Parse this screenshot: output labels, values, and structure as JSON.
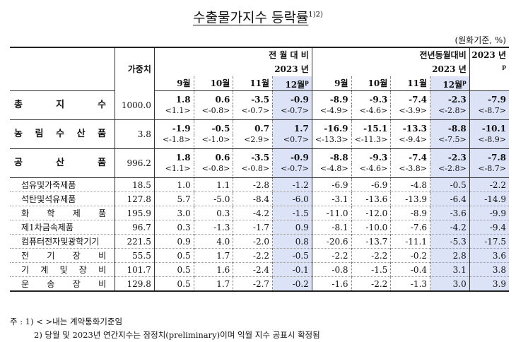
{
  "title": "수출물가지수 등락률",
  "title_sup": "1)2)",
  "unit": "(원화기준, %)",
  "header": {
    "weight": "가중치",
    "mom_group": "전 월 대 비",
    "mom_year": "2023 년",
    "yoy_group": "전년동월대비",
    "yoy_year": "2023 년",
    "annual": "2023 년",
    "annual_sup": "p",
    "months": [
      "9월",
      "10월",
      "11월",
      "12월"
    ],
    "month_p_sup": "p"
  },
  "rows": [
    {
      "label": "총 지 수",
      "weight": "1000.0",
      "mom": [
        "1.8",
        "0.6",
        "-3.5",
        "-0.9"
      ],
      "mom_krw": [
        "<1.1>",
        "<-0.8>",
        "<-0.7>",
        "<-0.7>"
      ],
      "yoy": [
        "-8.9",
        "-9.3",
        "-7.4",
        "-2.3"
      ],
      "yoy_krw": [
        "<-4.9>",
        "<-4.6>",
        "<-3.9>",
        "<-2.8>"
      ],
      "annual": "-7.9",
      "annual_krw": "<-8.7>"
    },
    {
      "label": "농 림 수 산 품",
      "weight": "3.8",
      "mom": [
        "-1.9",
        "-0.5",
        "0.7",
        "1.7"
      ],
      "mom_krw": [
        "<-1.8>",
        "<-1.0>",
        "<2.9>",
        "<0.7>"
      ],
      "yoy": [
        "-16.9",
        "-15.1",
        "-13.3",
        "-8.8"
      ],
      "yoy_krw": [
        "<-13.3>",
        "<-11.3>",
        "<-9.4>",
        "<-7.5>"
      ],
      "annual": "-10.1",
      "annual_krw": "<-8.9>"
    },
    {
      "label": "공 산 품",
      "weight": "996.2",
      "mom": [
        "1.8",
        "0.6",
        "-3.5",
        "-0.9"
      ],
      "mom_krw": [
        "<1.1>",
        "<-0.8>",
        "<-0.8>",
        "<-0.7>"
      ],
      "yoy": [
        "-8.8",
        "-9.3",
        "-7.4",
        "-2.3"
      ],
      "yoy_krw": [
        "<-4.8>",
        "<-4.6>",
        "<-3.8>",
        "<-2.8>"
      ],
      "annual": "-7.8",
      "annual_krw": "<-8.7>"
    }
  ],
  "subrows": [
    {
      "label": "섬유및가죽제품",
      "weight": "18.5",
      "mom": [
        "1.0",
        "1.1",
        "-2.8",
        "-1.2"
      ],
      "yoy": [
        "-6.9",
        "-6.9",
        "-4.8",
        "-0.5"
      ],
      "annual": "-2.2"
    },
    {
      "label": "석탄및석유제품",
      "weight": "127.8",
      "mom": [
        "5.7",
        "-5.0",
        "-8.4",
        "-6.0"
      ],
      "yoy": [
        "-3.1",
        "-13.6",
        "-13.9",
        "-6.4"
      ],
      "annual": "-14.9"
    },
    {
      "label": "화 학 제 품",
      "weight": "195.9",
      "mom": [
        "3.0",
        "0.3",
        "-4.2",
        "-1.5"
      ],
      "yoy": [
        "-11.0",
        "-12.0",
        "-8.9",
        "-3.6"
      ],
      "annual": "-9.9"
    },
    {
      "label": "제1차금속제품",
      "weight": "96.7",
      "mom": [
        "0.3",
        "-1.3",
        "-1.7",
        "0.9"
      ],
      "yoy": [
        "-8.1",
        "-10.0",
        "-7.6",
        "-4.2"
      ],
      "annual": "-9.4"
    },
    {
      "label": "컴퓨터전자및광학기기",
      "weight": "221.5",
      "mom": [
        "0.9",
        "4.0",
        "-2.0",
        "0.8"
      ],
      "yoy": [
        "-20.6",
        "-13.7",
        "-11.1",
        "-5.3"
      ],
      "annual": "-17.5"
    },
    {
      "label": "전 기 장 비",
      "weight": "55.5",
      "mom": [
        "0.5",
        "1.7",
        "-2.2",
        "-0.5"
      ],
      "yoy": [
        "-2.2",
        "-2.2",
        "-0.2",
        "2.8"
      ],
      "annual": "3.6"
    },
    {
      "label": "기 계 및 장 비",
      "weight": "101.7",
      "mom": [
        "0.5",
        "1.6",
        "-2.4",
        "-0.1"
      ],
      "yoy": [
        "-0.8",
        "-1.5",
        "-0.4",
        "3.1"
      ],
      "annual": "3.8"
    },
    {
      "label": "운 송 장 비",
      "weight": "129.8",
      "mom": [
        "0.5",
        "1.7",
        "-2.7",
        "-0.2"
      ],
      "yoy": [
        "-1.6",
        "-2.2",
        "-1.3",
        "3.0"
      ],
      "annual": "3.9"
    }
  ],
  "notes": {
    "n1": "주 : 1) < >내는 계약통화기준임",
    "n2": "2) 당월 및 2023년 연간지수는 잠정치(preliminary)이며 익월 지수 공표시 확정됨"
  }
}
